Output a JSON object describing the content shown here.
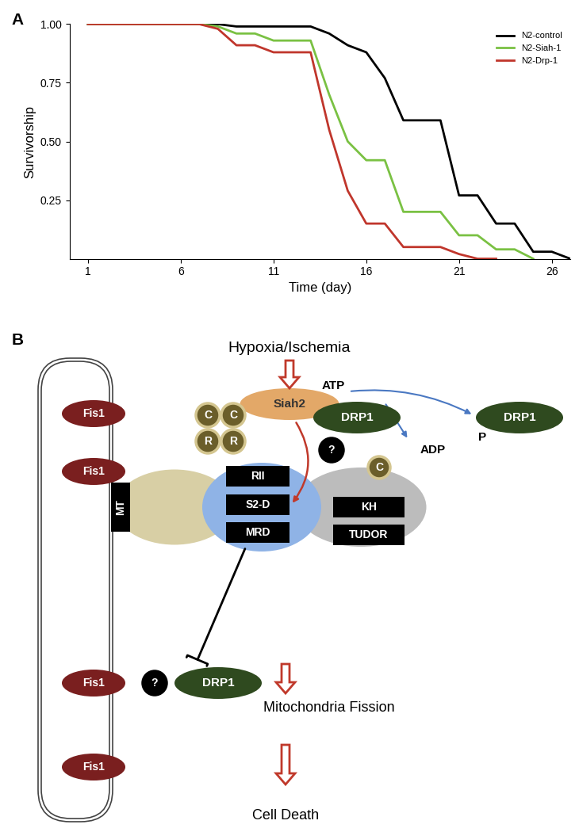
{
  "panels": [
    "A",
    "B"
  ],
  "chart_data": {
    "type": "line",
    "x_label": "Time (day)",
    "y_label": "Survivorship",
    "x": [
      1,
      2,
      3,
      4,
      5,
      6,
      7,
      8,
      9,
      10,
      11,
      12,
      13,
      14,
      15,
      16,
      17,
      18,
      19,
      20,
      21,
      22,
      23,
      24,
      25,
      26,
      27
    ],
    "xlim": [
      0,
      27
    ],
    "xticks": [
      1,
      6,
      11,
      16,
      21,
      26
    ],
    "ylim": [
      0,
      1.0
    ],
    "yticks": [
      {
        "value": 0.25,
        "label": "0.25"
      },
      {
        "value": 0.5,
        "label": "0.50"
      },
      {
        "value": 0.75,
        "label": "0.75"
      },
      {
        "value": 1.0,
        "label": "1.00"
      }
    ],
    "legend": "upper right",
    "grid": false,
    "series": [
      {
        "name": "N2-control",
        "color": "#000000",
        "values": [
          1.0,
          1.0,
          1.0,
          1.0,
          1.0,
          1.0,
          1.0,
          1.0,
          0.99,
          0.99,
          0.99,
          0.99,
          0.99,
          0.96,
          0.91,
          0.88,
          0.77,
          0.59,
          0.59,
          0.59,
          0.27,
          0.27,
          0.15,
          0.15,
          0.03,
          0.03,
          0.0
        ]
      },
      {
        "name": "N2-Siah-1",
        "color": "#7ac143",
        "values": [
          1.0,
          1.0,
          1.0,
          1.0,
          1.0,
          1.0,
          1.0,
          0.99,
          0.96,
          0.96,
          0.93,
          0.93,
          0.93,
          0.7,
          0.5,
          0.42,
          0.42,
          0.2,
          0.2,
          0.2,
          0.1,
          0.1,
          0.04,
          0.04,
          0.0,
          null,
          null
        ]
      },
      {
        "name": "N2-Drp-1",
        "color": "#c0362c",
        "values": [
          1.0,
          1.0,
          1.0,
          1.0,
          1.0,
          1.0,
          1.0,
          0.98,
          0.91,
          0.91,
          0.88,
          0.88,
          0.88,
          0.55,
          0.29,
          0.15,
          0.15,
          0.05,
          0.05,
          0.05,
          0.02,
          0.0,
          0.0,
          null,
          null,
          null,
          null
        ]
      }
    ]
  },
  "diagram": {
    "stimulus": "Hypoxia/Ischemia",
    "ligase": "Siah2",
    "fis1": [
      "Fis1",
      "Fis1",
      "Fis1",
      "Fis1"
    ],
    "holoenzyme": [
      "C",
      "C",
      "R",
      "R"
    ],
    "mt_domain": "MT",
    "middle_domains": [
      "RII",
      "S2-D",
      "MRD"
    ],
    "right_domains": [
      "KH",
      "TUDOR"
    ],
    "drp1": [
      "DRP1",
      "DRP1",
      "DRP1"
    ],
    "unknown": [
      "?",
      "?"
    ],
    "phosphorylation": {
      "atp": "ATP",
      "adp": "ADP",
      "catalytic": "C",
      "phosphate": "P"
    },
    "outcomes": [
      "Mitochondria Fission",
      "Cell Death"
    ]
  }
}
